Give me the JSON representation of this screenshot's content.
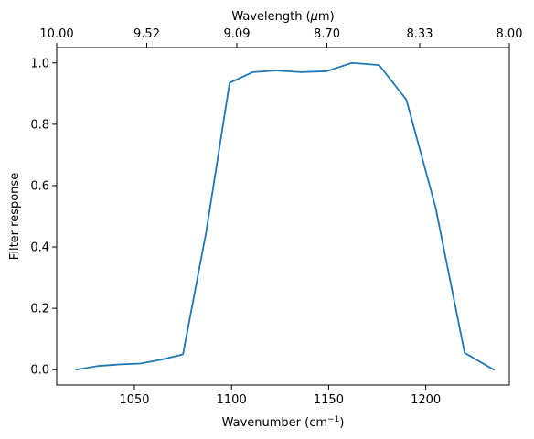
{
  "chart_data": {
    "type": "line",
    "title": "",
    "xlabel": "Wavenumber (cm",
    "xlabel_sup": "−1",
    "xlabel_end": ")",
    "ylabel": "Filter response",
    "top_axis_label_prefix": "Wavelength (",
    "top_axis_label_mu": "μ",
    "top_axis_label_suffix": "m)",
    "xlim": [
      1010,
      1243
    ],
    "ylim": [
      -0.05,
      1.05
    ],
    "x_ticks": [
      1050,
      1100,
      1150,
      1200
    ],
    "x_tick_labels": [
      "1050",
      "1100",
      "1150",
      "1200"
    ],
    "y_ticks": [
      0.0,
      0.2,
      0.4,
      0.6,
      0.8,
      1.0
    ],
    "y_tick_labels": [
      "0.0",
      "0.2",
      "0.4",
      "0.6",
      "0.8",
      "1.0"
    ],
    "top_ticks": [
      1000,
      1050,
      1100,
      1150,
      1200,
      1250
    ],
    "top_tick_labels": [
      "10.00",
      "9.52",
      "9.09",
      "8.70",
      "8.33",
      "8.00"
    ],
    "grid": false,
    "line_color": "#1f77b4",
    "series": [
      {
        "x": [
          1020,
          1031,
          1042,
          1053,
          1064,
          1075,
          1087,
          1099,
          1111,
          1123,
          1136,
          1149,
          1162,
          1176,
          1190,
          1205,
          1220,
          1235
        ],
        "y": [
          0.0,
          0.012,
          0.017,
          0.02,
          0.033,
          0.05,
          0.45,
          0.935,
          0.97,
          0.975,
          0.97,
          0.973,
          1.0,
          0.993,
          0.88,
          0.53,
          0.055,
          0.0
        ]
      }
    ]
  }
}
